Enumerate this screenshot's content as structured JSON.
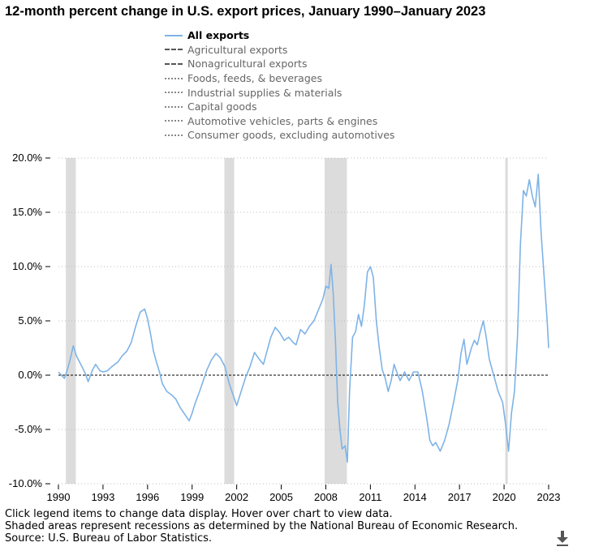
{
  "title": "12-month percent change in U.S. export prices, January 1990–January 2023",
  "legend": [
    {
      "label": "All exports",
      "style": "solid",
      "color": "#7EB3E6",
      "active": true
    },
    {
      "label": "Agricultural exports",
      "style": "dashed",
      "color": "#555555",
      "active": false
    },
    {
      "label": "Nonagricultural exports",
      "style": "dashed",
      "color": "#555555",
      "active": false
    },
    {
      "label": "Foods, feeds, & beverages",
      "style": "dotted",
      "color": "#888888",
      "active": false
    },
    {
      "label": "Industrial supplies & materials",
      "style": "dotted",
      "color": "#888888",
      "active": false
    },
    {
      "label": "Capital goods",
      "style": "dotted",
      "color": "#888888",
      "active": false
    },
    {
      "label": "Automotive vehicles, parts & engines",
      "style": "dotted",
      "color": "#888888",
      "active": false
    },
    {
      "label": "Consumer goods, excluding automotives",
      "style": "dotted",
      "color": "#888888",
      "active": false
    }
  ],
  "notes": {
    "line1": "Click legend items to change data display. Hover over chart to view data.",
    "line2": "Shaded areas represent recessions as determined by the National Bureau of Economic Research.",
    "line3": "Source: U.S. Bureau of Labor Statistics."
  },
  "chart_data": {
    "type": "line",
    "title": "12-month percent change in U.S. export prices, January 1990–January 2023",
    "xlim": [
      1990,
      2023
    ],
    "ylim": [
      -10,
      20
    ],
    "x_ticks": [
      "1990",
      "1993",
      "1996",
      "1999",
      "2002",
      "2005",
      "2008",
      "2011",
      "2014",
      "2017",
      "2020",
      "2023"
    ],
    "y_ticks": [
      "-10.0%",
      "-5.0%",
      "0.0%",
      "5.0%",
      "10.0%",
      "15.0%",
      "20.0%"
    ],
    "grid": "horizontal-dotted",
    "recessions": [
      [
        1990.5,
        1991.17
      ],
      [
        2001.17,
        2001.83
      ],
      [
        2007.92,
        2009.42
      ],
      [
        2020.08,
        2020.25
      ]
    ],
    "series": [
      {
        "name": "All exports",
        "color": "#7EB3E6",
        "x": [
          1990.0,
          1990.2,
          1990.4,
          1990.6,
          1990.8,
          1991.0,
          1991.2,
          1991.5,
          1991.8,
          1992.0,
          1992.3,
          1992.5,
          1992.8,
          1993.0,
          1993.3,
          1993.6,
          1994.0,
          1994.3,
          1994.6,
          1994.9,
          1995.2,
          1995.5,
          1995.8,
          1996.0,
          1996.2,
          1996.4,
          1996.6,
          1996.8,
          1997.0,
          1997.3,
          1997.6,
          1997.9,
          1998.2,
          1998.5,
          1998.8,
          1999.0,
          1999.2,
          1999.5,
          1999.8,
          2000.0,
          2000.3,
          2000.6,
          2000.9,
          2001.2,
          2001.5,
          2001.8,
          2002.0,
          2002.3,
          2002.6,
          2002.9,
          2003.2,
          2003.5,
          2003.8,
          2004.0,
          2004.3,
          2004.6,
          2004.9,
          2005.2,
          2005.5,
          2005.8,
          2006.0,
          2006.3,
          2006.6,
          2006.9,
          2007.2,
          2007.5,
          2007.8,
          2008.0,
          2008.2,
          2008.35,
          2008.5,
          2008.65,
          2008.8,
          2008.95,
          2009.1,
          2009.3,
          2009.45,
          2009.6,
          2009.8,
          2010.0,
          2010.2,
          2010.4,
          2010.6,
          2010.8,
          2011.0,
          2011.2,
          2011.4,
          2011.6,
          2011.8,
          2012.0,
          2012.2,
          2012.4,
          2012.6,
          2012.8,
          2013.0,
          2013.3,
          2013.6,
          2013.9,
          2014.2,
          2014.5,
          2014.8,
          2015.0,
          2015.2,
          2015.4,
          2015.7,
          2016.0,
          2016.3,
          2016.6,
          2016.9,
          2017.1,
          2017.3,
          2017.5,
          2017.8,
          2018.0,
          2018.2,
          2018.4,
          2018.6,
          2018.8,
          2019.0,
          2019.3,
          2019.6,
          2019.9,
          2020.1,
          2020.3,
          2020.5,
          2020.7,
          2020.9,
          2021.1,
          2021.3,
          2021.5,
          2021.7,
          2021.9,
          2022.1,
          2022.3,
          2022.5,
          2022.7,
          2022.9,
          2023.0
        ],
        "values": [
          0.3,
          0.0,
          -0.3,
          0.5,
          1.5,
          2.7,
          1.8,
          1.0,
          0.2,
          -0.6,
          0.5,
          1.0,
          0.4,
          0.3,
          0.4,
          0.8,
          1.2,
          1.8,
          2.2,
          3.0,
          4.5,
          5.8,
          6.1,
          5.2,
          3.8,
          2.2,
          1.2,
          0.3,
          -0.8,
          -1.5,
          -1.8,
          -2.2,
          -3.0,
          -3.6,
          -4.2,
          -3.5,
          -2.6,
          -1.5,
          -0.3,
          0.5,
          1.4,
          2.0,
          1.6,
          0.8,
          -0.8,
          -2.0,
          -2.8,
          -1.5,
          -0.2,
          0.8,
          2.1,
          1.5,
          1.0,
          2.0,
          3.5,
          4.4,
          3.9,
          3.2,
          3.5,
          3.0,
          2.8,
          4.2,
          3.8,
          4.5,
          5.0,
          6.0,
          7.0,
          8.2,
          8.0,
          10.2,
          7.5,
          3.0,
          -2.5,
          -5.0,
          -6.8,
          -6.5,
          -8.0,
          -1.5,
          3.5,
          4.0,
          5.6,
          4.5,
          6.5,
          9.5,
          10.0,
          9.0,
          5.0,
          2.5,
          0.5,
          -0.3,
          -1.5,
          -0.5,
          1.0,
          0.2,
          -0.5,
          0.3,
          -0.5,
          0.3,
          0.3,
          -1.5,
          -4.0,
          -6.0,
          -6.5,
          -6.2,
          -7.0,
          -6.0,
          -4.5,
          -2.5,
          -0.3,
          2.0,
          3.3,
          1.0,
          2.5,
          3.2,
          2.8,
          4.0,
          5.0,
          3.5,
          1.5,
          0.0,
          -1.5,
          -2.5,
          -4.5,
          -7.0,
          -3.5,
          -1.5,
          3.5,
          12.0,
          17.0,
          16.5,
          18.0,
          16.5,
          15.5,
          18.5,
          13.0,
          9.0,
          5.0,
          2.5
        ]
      }
    ]
  }
}
